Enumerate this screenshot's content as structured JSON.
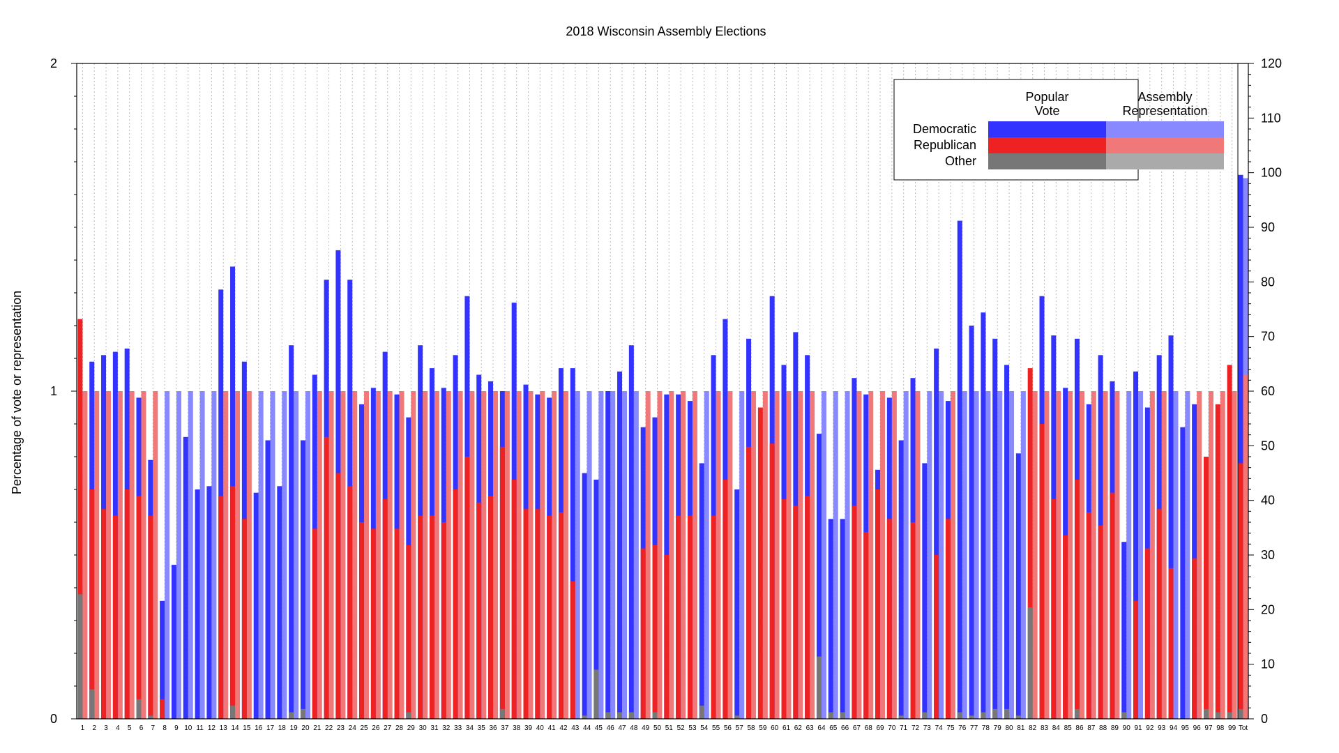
{
  "chart_data": {
    "type": "bar",
    "title": "2018 Wisconsin Assembly Elections",
    "ylabel": "Percentage of vote or representation",
    "ylim": [
      0,
      2
    ],
    "y_ticks": [
      0,
      1,
      2
    ],
    "y2lim": [
      0,
      120
    ],
    "y2_ticks": [
      0,
      10,
      20,
      30,
      40,
      50,
      60,
      70,
      80,
      90,
      100,
      110,
      120
    ],
    "legend": {
      "placement": "top-right",
      "column_headers": [
        "Popular\nVote",
        "Assembly\nRepresentation"
      ],
      "rows": [
        "Democratic",
        "Republican",
        "Other"
      ]
    },
    "colors": {
      "dem_vote": "#3333ff",
      "rep_vote": "#ee2222",
      "other_vote": "#777777",
      "dem_seat": "#8888ff",
      "rep_seat": "#f07878",
      "other_seat": "#aaaaaa",
      "grid": "#bbbbbb"
    },
    "districts": [
      {
        "label": "1",
        "dem": 0.0,
        "rep": 1.22,
        "other": 0.38,
        "seat": "R"
      },
      {
        "label": "2",
        "dem": 1.09,
        "rep": 0.7,
        "other": 0.09,
        "seat": "R"
      },
      {
        "label": "3",
        "dem": 1.11,
        "rep": 0.64,
        "other": 0.0,
        "seat": "R"
      },
      {
        "label": "4",
        "dem": 1.12,
        "rep": 0.62,
        "other": 0.0,
        "seat": "R"
      },
      {
        "label": "5",
        "dem": 1.13,
        "rep": 0.7,
        "other": 0.0,
        "seat": "R"
      },
      {
        "label": "6",
        "dem": 0.98,
        "rep": 0.68,
        "other": 0.06,
        "seat": "R"
      },
      {
        "label": "7",
        "dem": 0.79,
        "rep": 0.62,
        "other": 0.01,
        "seat": "R"
      },
      {
        "label": "8",
        "dem": 0.36,
        "rep": 0.06,
        "other": 0.0,
        "seat": "D"
      },
      {
        "label": "9",
        "dem": 0.47,
        "rep": 0.0,
        "other": 0.0,
        "seat": "D"
      },
      {
        "label": "10",
        "dem": 0.86,
        "rep": 0.0,
        "other": 0.0,
        "seat": "D"
      },
      {
        "label": "11",
        "dem": 0.7,
        "rep": 0.0,
        "other": 0.0,
        "seat": "D"
      },
      {
        "label": "12",
        "dem": 0.71,
        "rep": 0.0,
        "other": 0.0,
        "seat": "D"
      },
      {
        "label": "13",
        "dem": 1.31,
        "rep": 0.68,
        "other": 0.0,
        "seat": "R"
      },
      {
        "label": "14",
        "dem": 1.38,
        "rep": 0.71,
        "other": 0.04,
        "seat": "R"
      },
      {
        "label": "15",
        "dem": 1.09,
        "rep": 0.61,
        "other": 0.0,
        "seat": "R"
      },
      {
        "label": "16",
        "dem": 0.69,
        "rep": 0.0,
        "other": 0.0,
        "seat": "D"
      },
      {
        "label": "17",
        "dem": 0.85,
        "rep": 0.0,
        "other": 0.0,
        "seat": "D"
      },
      {
        "label": "18",
        "dem": 0.71,
        "rep": 0.0,
        "other": 0.0,
        "seat": "D"
      },
      {
        "label": "19",
        "dem": 1.14,
        "rep": 0.0,
        "other": 0.02,
        "seat": "D"
      },
      {
        "label": "20",
        "dem": 0.85,
        "rep": 0.0,
        "other": 0.03,
        "seat": "D"
      },
      {
        "label": "21",
        "dem": 1.05,
        "rep": 0.58,
        "other": 0.0,
        "seat": "R"
      },
      {
        "label": "22",
        "dem": 1.34,
        "rep": 0.86,
        "other": 0.0,
        "seat": "R"
      },
      {
        "label": "23",
        "dem": 1.43,
        "rep": 0.75,
        "other": 0.0,
        "seat": "R"
      },
      {
        "label": "24",
        "dem": 1.34,
        "rep": 0.71,
        "other": 0.0,
        "seat": "R"
      },
      {
        "label": "25",
        "dem": 0.96,
        "rep": 0.6,
        "other": 0.0,
        "seat": "R"
      },
      {
        "label": "26",
        "dem": 1.01,
        "rep": 0.58,
        "other": 0.0,
        "seat": "R"
      },
      {
        "label": "27",
        "dem": 1.12,
        "rep": 0.67,
        "other": 0.0,
        "seat": "R"
      },
      {
        "label": "28",
        "dem": 0.99,
        "rep": 0.58,
        "other": 0.0,
        "seat": "R"
      },
      {
        "label": "29",
        "dem": 0.92,
        "rep": 0.53,
        "other": 0.02,
        "seat": "R"
      },
      {
        "label": "30",
        "dem": 1.14,
        "rep": 0.62,
        "other": 0.0,
        "seat": "R"
      },
      {
        "label": "31",
        "dem": 1.07,
        "rep": 0.62,
        "other": 0.0,
        "seat": "R"
      },
      {
        "label": "32",
        "dem": 1.01,
        "rep": 0.6,
        "other": 0.0,
        "seat": "R"
      },
      {
        "label": "33",
        "dem": 1.11,
        "rep": 0.7,
        "other": 0.0,
        "seat": "R"
      },
      {
        "label": "34",
        "dem": 1.29,
        "rep": 0.8,
        "other": 0.0,
        "seat": "R"
      },
      {
        "label": "35",
        "dem": 1.05,
        "rep": 0.66,
        "other": 0.0,
        "seat": "R"
      },
      {
        "label": "36",
        "dem": 1.03,
        "rep": 0.68,
        "other": 0.0,
        "seat": "R"
      },
      {
        "label": "37",
        "dem": 1.0,
        "rep": 0.83,
        "other": 0.03,
        "seat": "R"
      },
      {
        "label": "38",
        "dem": 1.27,
        "rep": 0.73,
        "other": 0.0,
        "seat": "R"
      },
      {
        "label": "39",
        "dem": 1.02,
        "rep": 0.64,
        "other": 0.0,
        "seat": "R"
      },
      {
        "label": "40",
        "dem": 0.99,
        "rep": 0.64,
        "other": 0.0,
        "seat": "R"
      },
      {
        "label": "41",
        "dem": 0.98,
        "rep": 0.62,
        "other": 0.0,
        "seat": "R"
      },
      {
        "label": "42",
        "dem": 1.07,
        "rep": 0.63,
        "other": 0.0,
        "seat": "R"
      },
      {
        "label": "43",
        "dem": 1.07,
        "rep": 0.42,
        "other": 0.0,
        "seat": "D"
      },
      {
        "label": "44",
        "dem": 0.75,
        "rep": 0.0,
        "other": 0.01,
        "seat": "D"
      },
      {
        "label": "45",
        "dem": 0.73,
        "rep": 0.0,
        "other": 0.15,
        "seat": "D"
      },
      {
        "label": "46",
        "dem": 1.0,
        "rep": 0.0,
        "other": 0.02,
        "seat": "D"
      },
      {
        "label": "47",
        "dem": 1.06,
        "rep": 0.0,
        "other": 0.02,
        "seat": "D"
      },
      {
        "label": "48",
        "dem": 1.14,
        "rep": 0.0,
        "other": 0.02,
        "seat": "D"
      },
      {
        "label": "49",
        "dem": 0.89,
        "rep": 0.52,
        "other": 0.0,
        "seat": "R"
      },
      {
        "label": "50",
        "dem": 0.92,
        "rep": 0.53,
        "other": 0.02,
        "seat": "R"
      },
      {
        "label": "51",
        "dem": 0.99,
        "rep": 0.5,
        "other": 0.0,
        "seat": "R"
      },
      {
        "label": "52",
        "dem": 0.99,
        "rep": 0.62,
        "other": 0.0,
        "seat": "R"
      },
      {
        "label": "53",
        "dem": 0.97,
        "rep": 0.62,
        "other": 0.0,
        "seat": "R"
      },
      {
        "label": "54",
        "dem": 0.78,
        "rep": 0.0,
        "other": 0.04,
        "seat": "D"
      },
      {
        "label": "55",
        "dem": 1.11,
        "rep": 0.62,
        "other": 0.0,
        "seat": "R"
      },
      {
        "label": "56",
        "dem": 1.22,
        "rep": 0.73,
        "other": 0.0,
        "seat": "R"
      },
      {
        "label": "57",
        "dem": 0.7,
        "rep": 0.0,
        "other": 0.01,
        "seat": "D"
      },
      {
        "label": "58",
        "dem": 1.16,
        "rep": 0.83,
        "other": 0.0,
        "seat": "R"
      },
      {
        "label": "59",
        "dem": 0.0,
        "rep": 0.95,
        "other": 0.0,
        "seat": "R"
      },
      {
        "label": "60",
        "dem": 1.29,
        "rep": 0.84,
        "other": 0.0,
        "seat": "R"
      },
      {
        "label": "61",
        "dem": 1.08,
        "rep": 0.67,
        "other": 0.0,
        "seat": "R"
      },
      {
        "label": "62",
        "dem": 1.18,
        "rep": 0.65,
        "other": 0.0,
        "seat": "R"
      },
      {
        "label": "63",
        "dem": 1.11,
        "rep": 0.68,
        "other": 0.0,
        "seat": "R"
      },
      {
        "label": "64",
        "dem": 0.87,
        "rep": 0.0,
        "other": 0.19,
        "seat": "D"
      },
      {
        "label": "65",
        "dem": 0.61,
        "rep": 0.0,
        "other": 0.02,
        "seat": "D"
      },
      {
        "label": "66",
        "dem": 0.61,
        "rep": 0.0,
        "other": 0.02,
        "seat": "D"
      },
      {
        "label": "67",
        "dem": 1.04,
        "rep": 0.65,
        "other": 0.0,
        "seat": "R"
      },
      {
        "label": "68",
        "dem": 0.99,
        "rep": 0.57,
        "other": 0.0,
        "seat": "R"
      },
      {
        "label": "69",
        "dem": 0.76,
        "rep": 0.7,
        "other": 0.0,
        "seat": "R"
      },
      {
        "label": "70",
        "dem": 0.98,
        "rep": 0.61,
        "other": 0.0,
        "seat": "R"
      },
      {
        "label": "71",
        "dem": 0.85,
        "rep": 0.0,
        "other": 0.01,
        "seat": "D"
      },
      {
        "label": "72",
        "dem": 1.04,
        "rep": 0.6,
        "other": 0.0,
        "seat": "R"
      },
      {
        "label": "73",
        "dem": 0.78,
        "rep": 0.0,
        "other": 0.02,
        "seat": "D"
      },
      {
        "label": "74",
        "dem": 1.13,
        "rep": 0.5,
        "other": 0.0,
        "seat": "D"
      },
      {
        "label": "75",
        "dem": 0.97,
        "rep": 0.61,
        "other": 0.0,
        "seat": "R"
      },
      {
        "label": "76",
        "dem": 1.52,
        "rep": 0.0,
        "other": 0.02,
        "seat": "D"
      },
      {
        "label": "77",
        "dem": 1.2,
        "rep": 0.0,
        "other": 0.01,
        "seat": "D"
      },
      {
        "label": "78",
        "dem": 1.24,
        "rep": 0.0,
        "other": 0.02,
        "seat": "D"
      },
      {
        "label": "79",
        "dem": 1.16,
        "rep": 0.0,
        "other": 0.03,
        "seat": "D"
      },
      {
        "label": "80",
        "dem": 1.08,
        "rep": 0.0,
        "other": 0.03,
        "seat": "D"
      },
      {
        "label": "81",
        "dem": 0.81,
        "rep": 0.0,
        "other": 0.01,
        "seat": "D"
      },
      {
        "label": "82",
        "dem": 0.0,
        "rep": 1.07,
        "other": 0.34,
        "seat": "R"
      },
      {
        "label": "83",
        "dem": 1.29,
        "rep": 0.9,
        "other": 0.0,
        "seat": "R"
      },
      {
        "label": "84",
        "dem": 1.17,
        "rep": 0.67,
        "other": 0.0,
        "seat": "R"
      },
      {
        "label": "85",
        "dem": 1.01,
        "rep": 0.56,
        "other": 0.0,
        "seat": "R"
      },
      {
        "label": "86",
        "dem": 1.16,
        "rep": 0.73,
        "other": 0.03,
        "seat": "R"
      },
      {
        "label": "87",
        "dem": 0.96,
        "rep": 0.63,
        "other": 0.0,
        "seat": "R"
      },
      {
        "label": "88",
        "dem": 1.11,
        "rep": 0.59,
        "other": 0.0,
        "seat": "R"
      },
      {
        "label": "89",
        "dem": 1.03,
        "rep": 0.69,
        "other": 0.0,
        "seat": "R"
      },
      {
        "label": "90",
        "dem": 0.54,
        "rep": 0.0,
        "other": 0.02,
        "seat": "D"
      },
      {
        "label": "91",
        "dem": 1.06,
        "rep": 0.36,
        "other": 0.0,
        "seat": "D"
      },
      {
        "label": "92",
        "dem": 0.95,
        "rep": 0.52,
        "other": 0.0,
        "seat": "R"
      },
      {
        "label": "93",
        "dem": 1.11,
        "rep": 0.64,
        "other": 0.0,
        "seat": "R"
      },
      {
        "label": "94",
        "dem": 1.17,
        "rep": 0.46,
        "other": 0.0,
        "seat": "D"
      },
      {
        "label": "95",
        "dem": 0.89,
        "rep": 0.0,
        "other": 0.0,
        "seat": "D"
      },
      {
        "label": "96",
        "dem": 0.96,
        "rep": 0.49,
        "other": 0.0,
        "seat": "R"
      },
      {
        "label": "97",
        "dem": 0.0,
        "rep": 0.8,
        "other": 0.03,
        "seat": "R"
      },
      {
        "label": "98",
        "dem": 0.0,
        "rep": 0.96,
        "other": 0.02,
        "seat": "R"
      },
      {
        "label": "99",
        "dem": 0.0,
        "rep": 1.08,
        "other": 0.02,
        "seat": "R"
      }
    ],
    "total": {
      "label": "Tot",
      "dem_vote": 1.66,
      "rep_vote": 0.78,
      "other_vote": 0.03,
      "dem_seats": 36,
      "rep_seats": 63,
      "other_seats": 0
    }
  }
}
